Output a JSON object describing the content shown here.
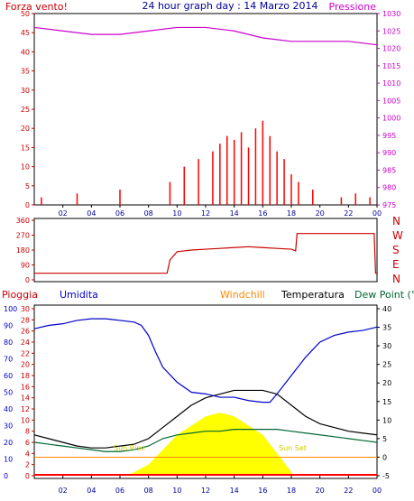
{
  "colors": {
    "background": "#ffffff",
    "frame": "#000000",
    "wind": "#ff0000",
    "gust_blue": "#0000ff",
    "gust_green": "#008000",
    "pressure": "#cc00cc",
    "direction": "#cc0000",
    "rain": "#cc0000",
    "humidity": "#0000cc",
    "windchill": "#ff8800",
    "temperature": "#000000",
    "dewpoint": "#006633",
    "sun": "#ffff00",
    "sun_label": "#cccc00",
    "rain_bar": "#ff0000"
  },
  "header": {
    "wind_label": "Forza vento!",
    "title": "24 hour graph day : 14 Marzo 2014",
    "pressure_label": "Pressione"
  },
  "middle": {
    "dir_letters": [
      "N",
      "W",
      "S",
      "E",
      "N"
    ]
  },
  "bottom_header": {
    "rain_label": "Pioggia",
    "humidity_label": "Umidita",
    "windchill_label": "Windchill",
    "temperature_label": "Temperatura",
    "dewpoint_label": "Dew Point (°C"
  },
  "annotations": {
    "sun_rise": "Sun Rise",
    "sun_set": "Sun Set"
  },
  "chart_data": [
    {
      "type": "line",
      "name": "wind_pressure",
      "title": "24 hour graph day : 14 Marzo 2014",
      "x_ticks": [
        "02",
        "04",
        "06",
        "08",
        "10",
        "12",
        "14",
        "16",
        "18",
        "20",
        "22",
        "00"
      ],
      "left_axis": {
        "label": "Forza vento!",
        "range": [
          0,
          50
        ],
        "ticks": [
          0,
          5,
          10,
          15,
          20,
          25,
          30,
          35,
          40,
          45,
          50
        ]
      },
      "right_axis": {
        "label": "Pressione",
        "range": [
          975,
          1030
        ],
        "ticks": [
          975,
          980,
          985,
          990,
          995,
          1000,
          1005,
          1010,
          1015,
          1020,
          1025,
          1030
        ]
      },
      "series": [
        {
          "name": "Pressione",
          "axis": "right",
          "x": [
            0,
            2,
            4,
            6,
            8,
            10,
            12,
            14,
            16,
            18,
            20,
            22,
            24
          ],
          "y": [
            1026,
            1025,
            1024,
            1024,
            1025,
            1026,
            1026,
            1025,
            1023,
            1022,
            1022,
            1022,
            1021
          ]
        },
        {
          "name": "Forza vento!",
          "axis": "left",
          "x": [
            0.5,
            3,
            6,
            9.5,
            10.5,
            11.5,
            12.5,
            13,
            13.5,
            14,
            14.5,
            15,
            15.5,
            16,
            16.5,
            17,
            17.5,
            18,
            18.5,
            19.5,
            21.5,
            22.5,
            23.5
          ],
          "y": [
            2,
            3,
            4,
            6,
            10,
            12,
            14,
            16,
            18,
            17,
            19,
            15,
            20,
            22,
            18,
            14,
            12,
            8,
            6,
            4,
            2,
            3,
            2
          ]
        }
      ]
    },
    {
      "type": "line",
      "name": "wind_direction",
      "x_ticks": [
        "02",
        "04",
        "06",
        "08",
        "10",
        "12",
        "14",
        "16",
        "18",
        "20",
        "22",
        "00"
      ],
      "left_axis": {
        "range": [
          0,
          360
        ],
        "ticks": [
          0,
          90,
          180,
          270,
          360
        ]
      },
      "right_labels": [
        "N",
        "W",
        "S",
        "E",
        "N"
      ],
      "series": [
        {
          "name": "direction",
          "x": [
            0,
            9.3,
            9.5,
            10,
            10.5,
            11,
            12,
            13,
            14,
            15,
            16,
            17,
            18,
            18.3,
            18.4,
            20,
            22,
            23.8,
            23.9,
            24
          ],
          "y": [
            40,
            40,
            120,
            170,
            175,
            180,
            185,
            190,
            195,
            200,
            195,
            190,
            185,
            175,
            280,
            280,
            280,
            280,
            40,
            40
          ]
        }
      ]
    },
    {
      "type": "line",
      "name": "humidity_temperature",
      "x_ticks": [
        "02",
        "04",
        "06",
        "08",
        "10",
        "12",
        "14",
        "16",
        "18",
        "20",
        "22",
        "00"
      ],
      "axes": {
        "humidity": {
          "label": "Umidita",
          "range": [
            0,
            100
          ],
          "ticks": [
            0,
            10,
            20,
            30,
            40,
            50,
            60,
            70,
            80,
            90,
            100
          ]
        },
        "rain": {
          "label": "Pioggia",
          "range": [
            0,
            30
          ],
          "ticks": [
            0,
            2,
            4,
            6,
            8,
            10,
            12,
            14,
            16,
            18,
            20,
            22,
            24,
            26,
            28,
            30
          ]
        },
        "temperature": {
          "label": "Temperatura",
          "range": [
            -5,
            40
          ],
          "ticks": [
            -5,
            0,
            5,
            10,
            15,
            20,
            25,
            30,
            35,
            40
          ]
        }
      },
      "series": [
        {
          "name": "Umidita",
          "axis": "humidity",
          "x": [
            0,
            1,
            2,
            3,
            4,
            5,
            6,
            7,
            7.5,
            8,
            8.5,
            9,
            10,
            11,
            12,
            13,
            14,
            15,
            16,
            16.5,
            17,
            18,
            19,
            20,
            21,
            22,
            23,
            24
          ],
          "y": [
            88,
            90,
            91,
            93,
            94,
            94,
            93,
            92,
            90,
            84,
            74,
            65,
            56,
            50,
            49,
            47,
            47,
            45,
            44,
            44,
            49,
            60,
            71,
            80,
            84,
            86,
            87,
            89
          ]
        },
        {
          "name": "Temperatura",
          "axis": "temperature",
          "x": [
            0,
            1,
            2,
            3,
            4,
            5,
            6,
            7,
            8,
            9,
            10,
            11,
            12,
            13,
            14,
            15,
            16,
            17,
            18,
            19,
            20,
            21,
            22,
            23,
            24
          ],
          "y": [
            6,
            5,
            4,
            3,
            2.5,
            2.5,
            3,
            3.5,
            5,
            8,
            11,
            14,
            16,
            17,
            18,
            18,
            18,
            17,
            14,
            11,
            9,
            8,
            7,
            6.5,
            6
          ]
        },
        {
          "name": "Dew Point (°C",
          "axis": "temperature",
          "x": [
            0,
            1,
            2,
            3,
            4,
            5,
            6,
            7,
            8,
            9,
            10,
            11,
            12,
            13,
            14,
            15,
            16,
            17,
            18,
            19,
            20,
            21,
            22,
            23,
            24
          ],
          "y": [
            4,
            3.5,
            3,
            2.5,
            2,
            1.5,
            1.5,
            2,
            3,
            5,
            6,
            6.5,
            7,
            7,
            7.5,
            7.5,
            7.5,
            7.5,
            7,
            6.5,
            6,
            5.5,
            5,
            4.5,
            4
          ]
        },
        {
          "name": "Windchill",
          "axis": "temperature",
          "x": [
            0,
            6,
            18,
            24
          ],
          "y": [
            0,
            0,
            0,
            0
          ]
        },
        {
          "name": "sun",
          "axis": "temperature",
          "x": [
            6.5,
            8,
            10,
            12,
            13,
            14,
            16,
            18,
            18.2
          ],
          "y": [
            -5,
            -2,
            6,
            11,
            12,
            11,
            6,
            -4,
            -5
          ]
        },
        {
          "name": "Pioggia",
          "axis": "rain",
          "x": [
            0,
            24
          ],
          "y": [
            0,
            0
          ]
        }
      ]
    }
  ]
}
